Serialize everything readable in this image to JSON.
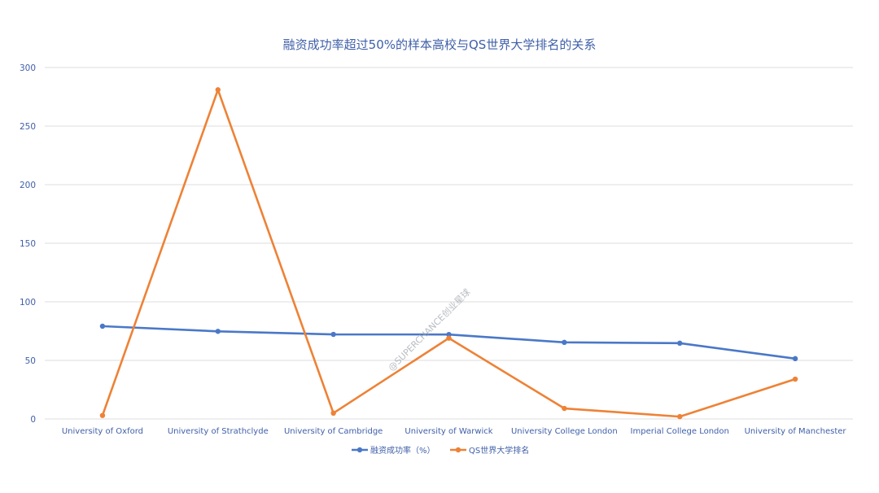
{
  "chart_data": {
    "type": "line",
    "title": "融资成功率超过50%的样本高校与QS世界大学排名的关系",
    "xlabel": "",
    "ylabel": "",
    "categories": [
      "University of Oxford",
      "University of Strathclyde",
      "University of Cambridge",
      "University of Warwick",
      "University College London",
      "Imperial College London",
      "University of Manchester"
    ],
    "ylim": [
      0,
      300
    ],
    "yticks": [
      0,
      50,
      100,
      150,
      200,
      250,
      300
    ],
    "grid": true,
    "legend_position": "bottom",
    "series": [
      {
        "name": "融资成功率（%）",
        "color": "#4a78c8",
        "values": [
          79.2,
          74.8,
          72.2,
          72.1,
          65.4,
          64.7,
          51.5
        ]
      },
      {
        "name": "QS世界大学排名",
        "color": "#ee8236",
        "values": [
          3,
          281,
          5,
          69,
          9,
          2,
          34
        ]
      }
    ],
    "watermark": "@SUPERCHANCE创业星球"
  }
}
